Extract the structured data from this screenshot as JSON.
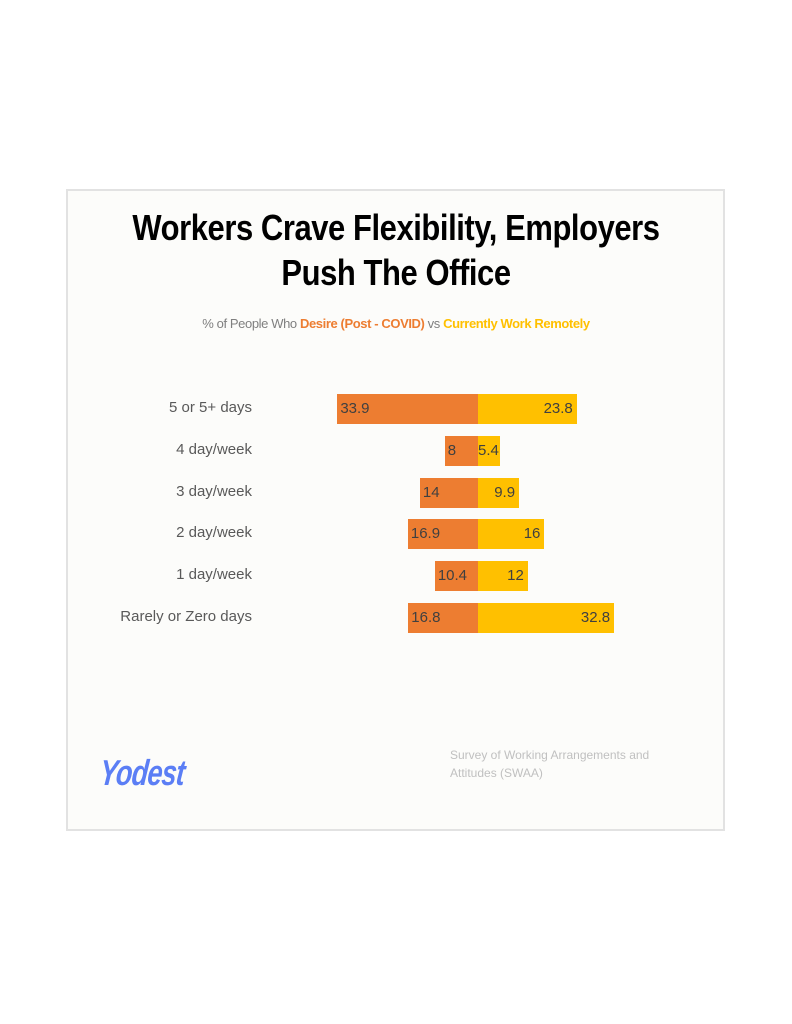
{
  "title_line1": "Workers Crave Flexibility, Employers",
  "title_line2": "Push The Office",
  "subtitle": {
    "prefix": "% of People Who ",
    "series1": "Desire (Post - COVID)",
    "middle": " vs ",
    "series2": "Currently Work Remotely"
  },
  "colors": {
    "desire": "#ed7d31",
    "current": "#ffc000",
    "logo": "#5b7ef5"
  },
  "rows": [
    {
      "label": "5 or 5+ days",
      "desire": "33.9",
      "current": "23.8"
    },
    {
      "label": "4 day/week",
      "desire": "8",
      "current": "5.4"
    },
    {
      "label": "3 day/week",
      "desire": "14",
      "current": "9.9"
    },
    {
      "label": "2 day/week",
      "desire": "16.9",
      "current": "16"
    },
    {
      "label": "1 day/week",
      "desire": "10.4",
      "current": "12"
    },
    {
      "label": "Rarely or Zero days",
      "desire": "16.8",
      "current": "32.8"
    }
  ],
  "logo": "Yodest",
  "source": "Survey of Working Arrangements and Attitudes (SWAA)",
  "chart_data": {
    "type": "bar",
    "orientation": "horizontal-diverging",
    "title": "Workers Crave Flexibility, Employers Push The Office",
    "subtitle": "% of People Who Desire (Post - COVID) vs Currently Work Remotely",
    "categories": [
      "5 or 5+ days",
      "4 day/week",
      "3 day/week",
      "2 day/week",
      "1 day/week",
      "Rarely or Zero days"
    ],
    "series": [
      {
        "name": "Desire (Post - COVID)",
        "color": "#ed7d31",
        "values": [
          33.9,
          8,
          14,
          16.9,
          10.4,
          16.8
        ]
      },
      {
        "name": "Currently Work Remotely",
        "color": "#ffc000",
        "values": [
          23.8,
          5.4,
          9.9,
          16,
          12,
          32.8
        ]
      }
    ],
    "xlabel": "",
    "ylabel": "",
    "grid": false,
    "data_labels": true,
    "source": "Survey of Working Arrangements and Attitudes (SWAA)"
  }
}
